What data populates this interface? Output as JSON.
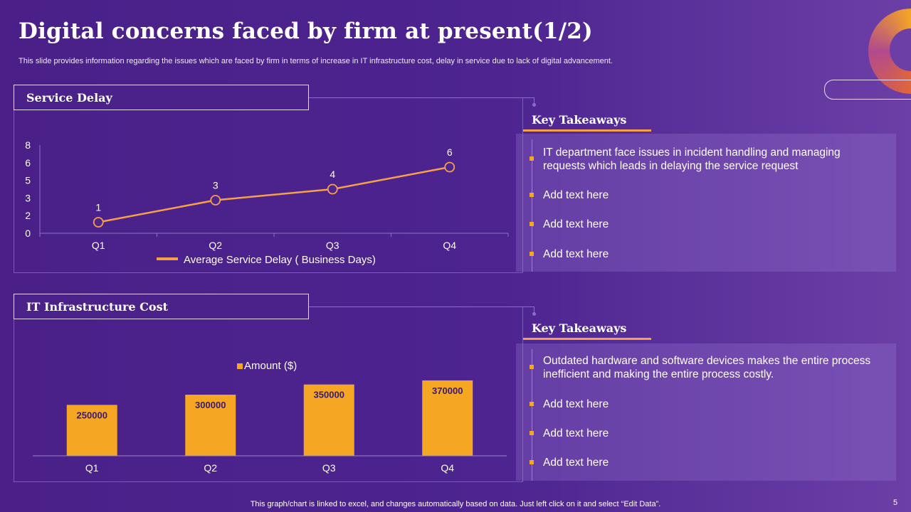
{
  "title": "Digital concerns faced by firm at present(1/2)",
  "subtitle": "This slide provides information regarding the issues which are faced by firm in terms of increase in IT infrastructure cost, delay in service due to lack of digital advancement.",
  "panels": {
    "service_delay": {
      "label": "Service Delay"
    },
    "it_cost": {
      "label": "IT Infrastructure Cost"
    }
  },
  "takeaways_top": {
    "title": "Key Takeaways",
    "items": [
      "IT department face issues in incident handling and managing requests which leads in delaying the service request",
      "Add text here",
      "Add text here",
      "Add text here"
    ]
  },
  "takeaways_bottom": {
    "title": "Key Takeaways",
    "items": [
      "Outdated hardware and software devices makes the entire process inefficient and making the entire process costly.",
      "Add text here",
      "Add text here",
      "Add text here"
    ]
  },
  "footnote": "This graph/chart is linked to excel,  and changes automatically based on data. Just left click on it and select “Edit Data”.",
  "page_number": "5",
  "colors": {
    "accent": "#f5a623",
    "line": "#f5a04a",
    "background": "#4d2490"
  },
  "chart_data": [
    {
      "type": "line",
      "title": "Service Delay",
      "categories": [
        "Q1",
        "Q2",
        "Q3",
        "Q4"
      ],
      "series": [
        {
          "name": "Average Service Delay ( Business Days)",
          "values": [
            1,
            3,
            4,
            6
          ]
        }
      ],
      "y_ticks": [
        "0",
        "2",
        "3",
        "5",
        "6",
        "8"
      ],
      "ylim": [
        0,
        8
      ],
      "legend": "bottom"
    },
    {
      "type": "bar",
      "title": "IT Infrastructure Cost",
      "categories": [
        "Q1",
        "Q2",
        "Q3",
        "Q4"
      ],
      "series": [
        {
          "name": "Amount ($)",
          "values": [
            250000,
            300000,
            350000,
            370000
          ]
        }
      ],
      "ylim": [
        0,
        420000
      ],
      "legend": "top"
    }
  ]
}
